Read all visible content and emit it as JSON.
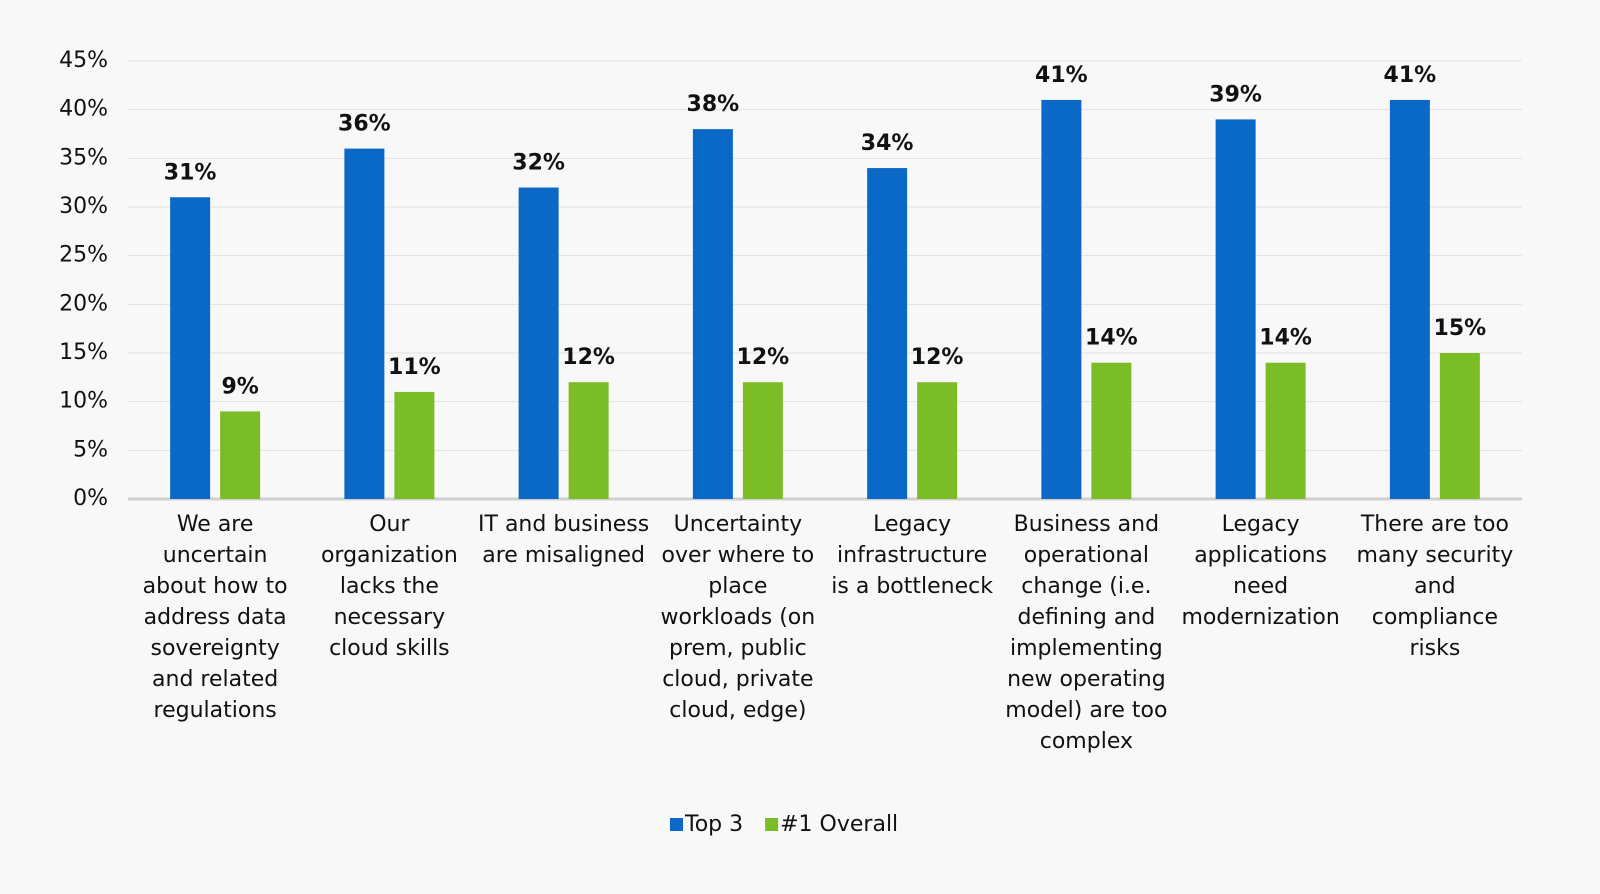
{
  "chart_data": {
    "type": "bar",
    "categories": [
      "We are uncertain about how to address data sovereignty and related regulations",
      "Our organization lacks the necessary cloud skills",
      "IT and business are misaligned",
      "Uncertainty over where to place workloads (on prem, public cloud, private cloud, edge)",
      "Legacy infrastructure is a bottleneck",
      "Business and operational change (i.e. defining and implementing new operating model) are too complex",
      "Legacy applications need modernization",
      "There are too many security and compliance risks"
    ],
    "series": [
      {
        "name": "Top 3",
        "color": "#0a68c6",
        "values": [
          31,
          36,
          32,
          38,
          34,
          41,
          39,
          41
        ],
        "value_labels": [
          "31%",
          "36%",
          "32%",
          "38%",
          "34%",
          "41%",
          "39%",
          "41%"
        ]
      },
      {
        "name": "#1 Overall",
        "color": "#7bbd27",
        "values": [
          9,
          11,
          12,
          12,
          12,
          14,
          14,
          15
        ],
        "value_labels": [
          "9%",
          "11%",
          "12%",
          "12%",
          "12%",
          "14%",
          "14%",
          "15%"
        ]
      }
    ],
    "ylim": [
      0,
      45
    ],
    "yticks": [
      {
        "value": 0,
        "label": "0%"
      },
      {
        "value": 5,
        "label": "5%"
      },
      {
        "value": 10,
        "label": "10%"
      },
      {
        "value": 15,
        "label": "15%"
      },
      {
        "value": 20,
        "label": "20%"
      },
      {
        "value": 25,
        "label": "25%"
      },
      {
        "value": 30,
        "label": "30%"
      },
      {
        "value": 35,
        "label": "35%"
      },
      {
        "value": 40,
        "label": "40%"
      },
      {
        "value": 45,
        "label": "45%"
      }
    ],
    "grid": true,
    "legend": "bottom"
  }
}
